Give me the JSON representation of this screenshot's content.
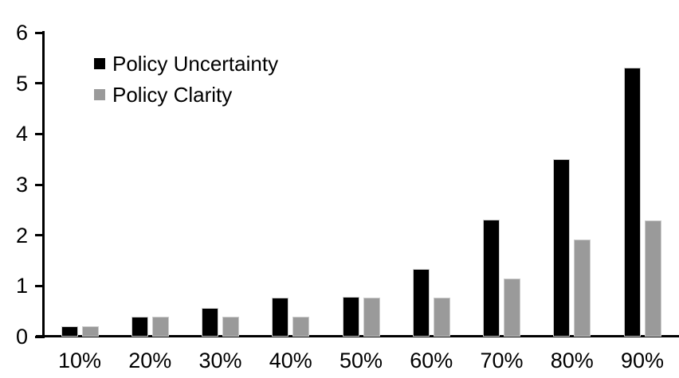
{
  "chart_data": {
    "type": "bar",
    "title": "",
    "xlabel": "",
    "ylabel": "",
    "categories": [
      "10%",
      "20%",
      "30%",
      "40%",
      "50%",
      "60%",
      "70%",
      "80%",
      "90%"
    ],
    "series": [
      {
        "name": "Policy Uncertainty",
        "color": "#000000",
        "values": [
          0.2,
          0.4,
          0.57,
          0.77,
          0.78,
          1.33,
          2.31,
          3.5,
          5.31
        ]
      },
      {
        "name": "Policy Clarity",
        "color": "#9a9a9a",
        "values": [
          0.2,
          0.39,
          0.39,
          0.39,
          0.77,
          0.77,
          1.15,
          1.91,
          2.29
        ]
      }
    ],
    "ylim": [
      0,
      6
    ],
    "yticks": [
      0,
      1,
      2,
      3,
      4,
      5,
      6
    ],
    "grid": false,
    "legend_position": "top-left",
    "colors": {
      "background": "#ffffff",
      "axis": "#000000",
      "bar_outline": "#cccccc"
    }
  }
}
